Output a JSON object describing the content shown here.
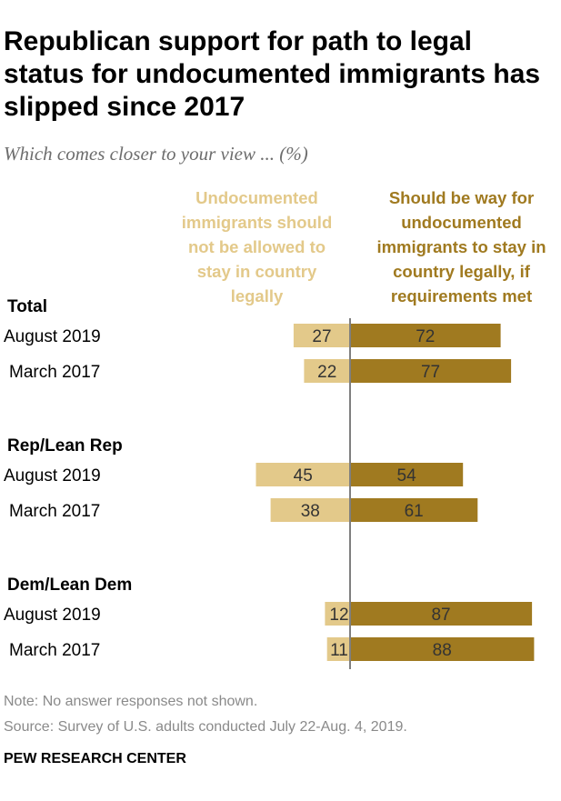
{
  "title": "Republican support for path to legal status for undocumented immigrants has slipped since 2017",
  "subtitle": "Which comes closer to your view ... (%)",
  "note": "Note: No answer responses not shown.",
  "source": "Source: Survey of U.S. adults conducted July 22-Aug. 4, 2019.",
  "brand": "PEW RESEARCH CENTER",
  "colors": {
    "left_bar": "#e3c98a",
    "right_bar": "#a07a20",
    "axis": "#7f7f7f"
  },
  "chart_data": {
    "type": "bar",
    "orientation": "horizontal-diverging",
    "series": [
      {
        "name": "Undocumented immigrants should not be allowed to stay in country legally",
        "side": "left"
      },
      {
        "name": "Should be way for undocumented immigrants to stay in country legally, if requirements met",
        "side": "right"
      }
    ],
    "groups": [
      {
        "label": "Total",
        "rows": [
          {
            "label": "August 2019",
            "left": 27,
            "right": 72
          },
          {
            "label": "March 2017",
            "left": 22,
            "right": 77
          }
        ]
      },
      {
        "label": "Rep/Lean Rep",
        "rows": [
          {
            "label": "August 2019",
            "left": 45,
            "right": 54
          },
          {
            "label": "March 2017",
            "left": 38,
            "right": 61
          }
        ]
      },
      {
        "label": "Dem/Lean Dem",
        "rows": [
          {
            "label": "August 2019",
            "left": 12,
            "right": 87
          },
          {
            "label": "March 2017",
            "left": 11,
            "right": 88
          }
        ]
      }
    ],
    "xlim": [
      0,
      100
    ]
  }
}
